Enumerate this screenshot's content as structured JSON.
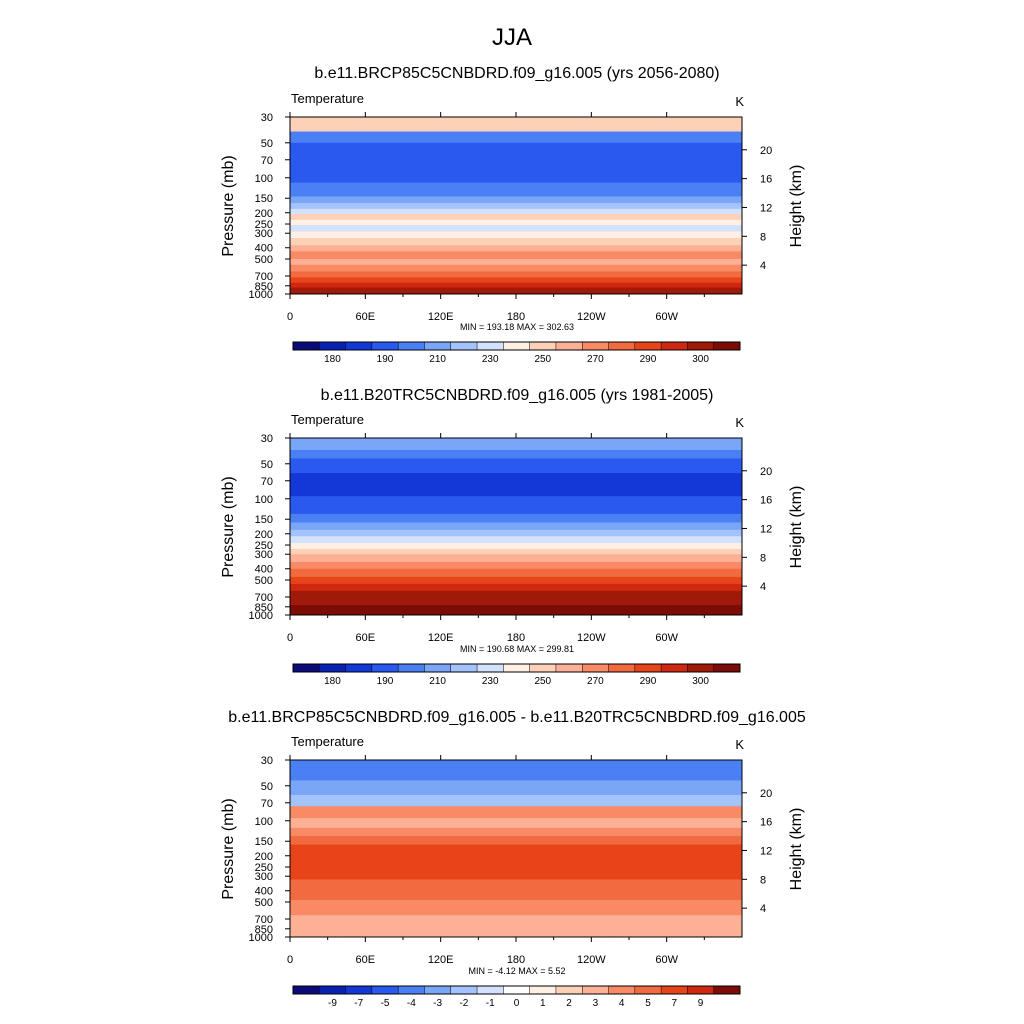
{
  "figure": {
    "title": "JJA"
  },
  "colors": {
    "full_palette": [
      "#0a0a7a",
      "#0a22b4",
      "#1438d8",
      "#2a59f0",
      "#4b80f5",
      "#7aa6f8",
      "#a4c2fb",
      "#d2e2fc",
      "#fff0e5",
      "#fdd0b8",
      "#fcb196",
      "#f98a66",
      "#f26a40",
      "#e8441a",
      "#d02810",
      "#a01a0a",
      "#7d0c06"
    ],
    "diff_palette": [
      "#0a0a7a",
      "#0a22b4",
      "#1438d8",
      "#2a59f0",
      "#4b80f5",
      "#7aa6f8",
      "#a4c2fb",
      "#d2e2fc",
      "#ffffff",
      "#fff0e5",
      "#fdd0b8",
      "#fcb196",
      "#f98a66",
      "#f26a40",
      "#e8441a",
      "#d02810",
      "#7d0c06"
    ],
    "topo": "#000000"
  },
  "chart_data": [
    {
      "type": "heatmap",
      "title": "b.e11.BRCP85C5CNBDRD.f09_g16.005 (yrs 2056-2080)",
      "left_label": "Temperature",
      "right_label": "K",
      "ylabel": "Pressure (mb)",
      "y2label": "Height (km)",
      "x_ticks": [
        "0",
        "60E",
        "120E",
        "180",
        "120W",
        "60W"
      ],
      "x_tick_lons": [
        0,
        60,
        120,
        180,
        240,
        300
      ],
      "xlim": [
        0,
        360
      ],
      "y_ticks": [
        "30",
        "50",
        "70",
        "100",
        "150",
        "200",
        "250",
        "300",
        "400",
        "500",
        "700",
        "850",
        "1000"
      ],
      "y_tick_values": [
        30,
        50,
        70,
        100,
        150,
        200,
        250,
        300,
        400,
        500,
        700,
        850,
        1000
      ],
      "ylim": [
        30,
        1000
      ],
      "height_ticks": [
        "4",
        "8",
        "12",
        "16",
        "20"
      ],
      "height_values": [
        4,
        8,
        12,
        16,
        20
      ],
      "stats": "MIN = 193.18  MAX = 302.63",
      "min": 193.18,
      "max": 302.63,
      "colorbar_labels": [
        "180",
        "190",
        "210",
        "230",
        "250",
        "270",
        "290",
        "300"
      ],
      "level_pressures": [
        30,
        40,
        50,
        110,
        145,
        165,
        185,
        205,
        230,
        255,
        290,
        330,
        380,
        430,
        500,
        560,
        640,
        720,
        800,
        880,
        940,
        1000
      ],
      "level_colors": [
        9,
        4,
        3,
        4,
        5,
        6,
        7,
        9,
        8,
        7,
        8,
        9,
        10,
        11,
        10,
        11,
        12,
        13,
        14,
        15,
        15
      ]
    },
    {
      "type": "heatmap",
      "title": "b.e11.B20TRC5CNBDRD.f09_g16.005 (yrs 1981-2005)",
      "left_label": "Temperature",
      "right_label": "K",
      "ylabel": "Pressure (mb)",
      "y2label": "Height (km)",
      "x_ticks": [
        "0",
        "60E",
        "120E",
        "180",
        "120W",
        "60W"
      ],
      "x_tick_lons": [
        0,
        60,
        120,
        180,
        240,
        300
      ],
      "xlim": [
        0,
        360
      ],
      "y_ticks": [
        "30",
        "50",
        "70",
        "100",
        "150",
        "200",
        "250",
        "300",
        "400",
        "500",
        "700",
        "850",
        "1000"
      ],
      "y_tick_values": [
        30,
        50,
        70,
        100,
        150,
        200,
        250,
        300,
        400,
        500,
        700,
        850,
        1000
      ],
      "ylim": [
        30,
        1000
      ],
      "height_ticks": [
        "4",
        "8",
        "12",
        "16",
        "20"
      ],
      "height_values": [
        4,
        8,
        12,
        16,
        20
      ],
      "stats": "MIN = 190.68  MAX = 299.81",
      "min": 190.68,
      "max": 299.81,
      "colorbar_labels": [
        "180",
        "190",
        "210",
        "230",
        "250",
        "270",
        "290",
        "300"
      ],
      "level_pressures": [
        30,
        38,
        45,
        60,
        95,
        135,
        160,
        185,
        210,
        240,
        270,
        300,
        350,
        400,
        470,
        540,
        620,
        720,
        820,
        920,
        1000
      ],
      "level_colors": [
        5,
        4,
        3,
        2,
        3,
        4,
        5,
        6,
        7,
        8,
        9,
        10,
        11,
        12,
        13,
        14,
        15,
        15,
        16,
        16
      ]
    },
    {
      "type": "heatmap",
      "title": "b.e11.BRCP85C5CNBDRD.f09_g16.005 - b.e11.B20TRC5CNBDRD.f09_g16.005",
      "left_label": "Temperature",
      "right_label": "K",
      "ylabel": "Pressure (mb)",
      "y2label": "Height (km)",
      "x_ticks": [
        "0",
        "60E",
        "120E",
        "180",
        "120W",
        "60W"
      ],
      "x_tick_lons": [
        0,
        60,
        120,
        180,
        240,
        300
      ],
      "xlim": [
        0,
        360
      ],
      "y_ticks": [
        "30",
        "50",
        "70",
        "100",
        "150",
        "200",
        "250",
        "300",
        "400",
        "500",
        "700",
        "850",
        "1000"
      ],
      "y_tick_values": [
        30,
        50,
        70,
        100,
        150,
        200,
        250,
        300,
        400,
        500,
        700,
        850,
        1000
      ],
      "ylim": [
        30,
        1000
      ],
      "height_ticks": [
        "4",
        "8",
        "12",
        "16",
        "20"
      ],
      "height_values": [
        4,
        8,
        12,
        16,
        20
      ],
      "stats": "MIN =  -4.12  MAX =   5.52",
      "min": -4.12,
      "max": 5.52,
      "colorbar_labels": [
        "-9",
        "-7",
        "-5",
        "-4",
        "-3",
        "-2",
        "-1",
        "0",
        "1",
        "2",
        "3",
        "4",
        "5",
        "7",
        "9"
      ],
      "level_pressures": [
        30,
        45,
        60,
        75,
        95,
        115,
        135,
        160,
        320,
        480,
        650,
        1000
      ],
      "level_colors": [
        4,
        5,
        6,
        12,
        11,
        12,
        13,
        14,
        13,
        12,
        11
      ]
    }
  ]
}
